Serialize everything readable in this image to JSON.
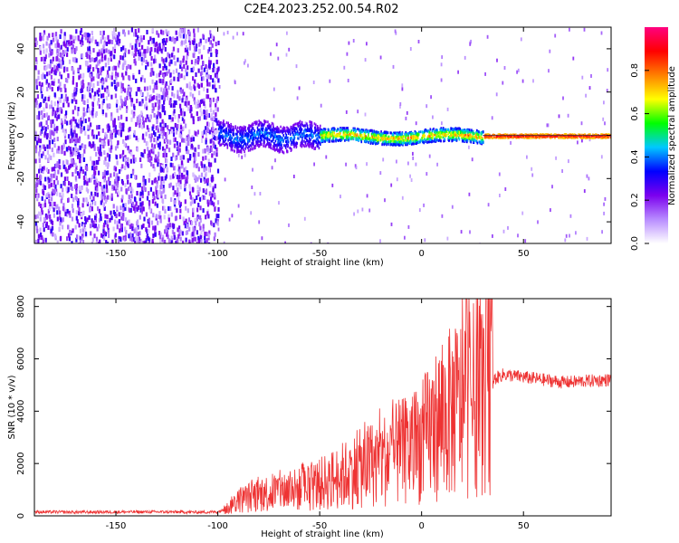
{
  "figure": {
    "title": "C2E4.2023.252.00.54.R02"
  },
  "chart_data": [
    {
      "type": "heatmap",
      "xlabel": "Height of straight line (km)",
      "ylabel": "Frequency (Hz)",
      "xlim": [
        -190,
        93
      ],
      "ylim": [
        -50,
        50
      ],
      "x_ticks": [
        -150,
        -100,
        -50,
        0,
        50
      ],
      "y_ticks": [
        -40,
        -20,
        0,
        20,
        40
      ],
      "colorbar": {
        "label": "Normalized spectral amplitude",
        "range": [
          0.0,
          1.0
        ],
        "ticks": [
          0.0,
          0.2,
          0.4,
          0.6,
          0.8
        ],
        "colormap": [
          "#ffffff",
          "#b88cff",
          "#7b00ee",
          "#0000ff",
          "#00c8ff",
          "#00ff00",
          "#ffff00",
          "#ff8000",
          "#ff0000",
          "#ff0080"
        ]
      },
      "regions": [
        {
          "x_range": [
            -190,
            -100
          ],
          "description_value": "broadband noise",
          "amplitude": [
            0.05,
            0.3
          ],
          "freq_range": [
            -50,
            50
          ]
        },
        {
          "x_range": [
            -100,
            -50
          ],
          "center_freq": 0,
          "half_width_hz": 6,
          "amplitude": [
            0.2,
            0.45
          ]
        },
        {
          "x_range": [
            -50,
            30
          ],
          "center_freq": 0,
          "half_width_hz": 3,
          "amplitude": [
            0.3,
            0.85
          ]
        },
        {
          "x_range": [
            30,
            93
          ],
          "center_freq": 0,
          "half_width_hz": 1,
          "amplitude": [
            0.7,
            1.0
          ]
        }
      ]
    },
    {
      "type": "line",
      "xlabel": "Height of straight line (km)",
      "ylabel": "SNR (10 * v/v)",
      "xlim": [
        -190,
        93
      ],
      "ylim": [
        0,
        8300
      ],
      "x_ticks": [
        -150,
        -100,
        -50,
        0,
        50
      ],
      "y_ticks": [
        0,
        2000,
        4000,
        6000,
        8000
      ],
      "color": "#ee3333",
      "series": [
        {
          "x": [
            -190,
            -170,
            -150,
            -130,
            -110,
            -100,
            -95,
            -90,
            -80,
            -70,
            -60,
            -50,
            -40,
            -30,
            -20,
            -10,
            0,
            5,
            10,
            20,
            25,
            30,
            35,
            40,
            50,
            60,
            70,
            80,
            93
          ],
          "values": [
            150,
            140,
            150,
            150,
            140,
            150,
            300,
            600,
            800,
            950,
            1000,
            1200,
            1500,
            1800,
            2100,
            2400,
            2800,
            3300,
            3700,
            4200,
            4400,
            4800,
            5200,
            5400,
            5300,
            5200,
            5100,
            5150,
            5200
          ]
        }
      ],
      "annotations": [
        {
          "x": 22,
          "y": 8300,
          "text": ""
        }
      ]
    }
  ]
}
